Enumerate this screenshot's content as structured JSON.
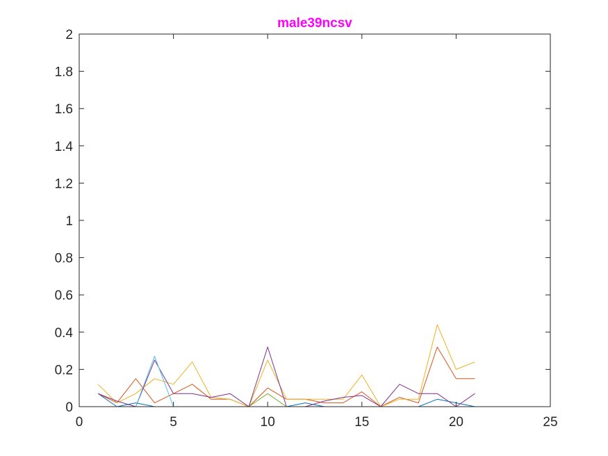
{
  "chart_data": {
    "type": "line",
    "title": "male39ncsv",
    "title_color": "#ff00ff",
    "xlabel": "",
    "ylabel": "",
    "xlim": [
      0,
      25
    ],
    "ylim": [
      0,
      2
    ],
    "x_ticks": [
      0,
      5,
      10,
      15,
      20,
      25
    ],
    "x_tick_labels": [
      "0",
      "5",
      "10",
      "15",
      "20",
      "25"
    ],
    "y_ticks": [
      0,
      0.2,
      0.4,
      0.6,
      0.8,
      1,
      1.2,
      1.4,
      1.6,
      1.8,
      2
    ],
    "y_tick_labels": [
      "0",
      "0.2",
      "0.4",
      "0.6",
      "0.8",
      "1",
      "1.2",
      "1.4",
      "1.6",
      "1.8",
      "2"
    ],
    "grid": false,
    "legend": "none",
    "x": [
      1,
      2,
      3,
      4,
      5,
      6,
      7,
      8,
      9,
      10,
      11,
      12,
      13,
      14,
      15,
      16,
      17,
      18,
      19,
      20,
      21
    ],
    "series": [
      {
        "color": "#0072bd",
        "values": [
          0.07,
          0,
          0.02,
          0,
          0,
          0,
          0,
          0,
          0,
          0,
          0,
          0.02,
          0,
          0,
          0,
          0,
          0,
          0,
          0.04,
          0.02,
          0
        ]
      },
      {
        "color": "#d95319",
        "values": [
          0.07,
          0.02,
          0.15,
          0.02,
          0.07,
          0.12,
          0.04,
          0.04,
          0,
          0.1,
          0.04,
          0.04,
          0.02,
          0.02,
          0.08,
          0,
          0.05,
          0.02,
          0.32,
          0.15,
          0.15
        ]
      },
      {
        "color": "#edb120",
        "values": [
          0.12,
          0.02,
          0.07,
          0.15,
          0.12,
          0.24,
          0.05,
          0.04,
          0,
          0.25,
          0.04,
          0.04,
          0.04,
          0.04,
          0.17,
          0,
          0.04,
          0.04,
          0.44,
          0.2,
          0.24
        ]
      },
      {
        "color": "#7e2f8e",
        "values": [
          0.07,
          0.03,
          0,
          0.25,
          0.07,
          0.07,
          0.05,
          0.07,
          0,
          0.32,
          0,
          0,
          0.03,
          0.05,
          0.06,
          0,
          0.12,
          0.07,
          0.07,
          0,
          0.07
        ]
      },
      {
        "color": "#77ac30",
        "values": [
          0,
          0,
          0,
          0,
          0,
          0,
          0,
          0,
          0,
          0.07,
          0,
          0,
          0,
          0,
          0,
          0,
          0,
          0,
          0,
          0,
          0
        ]
      },
      {
        "color": "#4dbeee",
        "values": [
          0,
          0,
          0,
          0.27,
          0,
          0,
          0,
          0,
          0,
          0,
          0,
          0,
          0,
          0,
          0,
          0,
          0,
          0,
          0,
          0,
          0
        ]
      }
    ]
  }
}
